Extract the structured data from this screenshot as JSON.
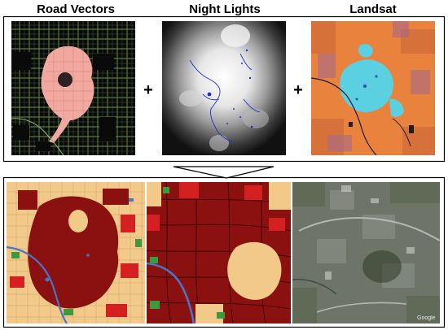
{
  "panels": {
    "road_vectors": {
      "title": "Road Vectors",
      "icon": "road-network-map"
    },
    "night_lights": {
      "title": "Night Lights",
      "icon": "satellite-night-light-image"
    },
    "landsat": {
      "title": "Landsat",
      "icon": "landsat-false-color-image"
    }
  },
  "operators": {
    "plus_1": "+",
    "plus_2": "+"
  },
  "outputs": {
    "classified_map": {
      "icon": "land-cover-classification-map"
    },
    "classified_zoom": {
      "icon": "land-cover-classification-zoom"
    },
    "satellite_basemap": {
      "icon": "satellite-basemap",
      "attribution": "Google"
    }
  },
  "colors": {
    "urban_dark_red": "#8b1010",
    "urban_red": "#d42020",
    "open_tan": "#f3c98a",
    "vegetation_green": "#3c9a3c",
    "water_blue": "#4a74c8",
    "road_green": "#7ea05a",
    "urban_pink": "#f1a8a0",
    "landsat_orange": "#f08a3c",
    "landsat_cyan": "#5ad0e0"
  }
}
